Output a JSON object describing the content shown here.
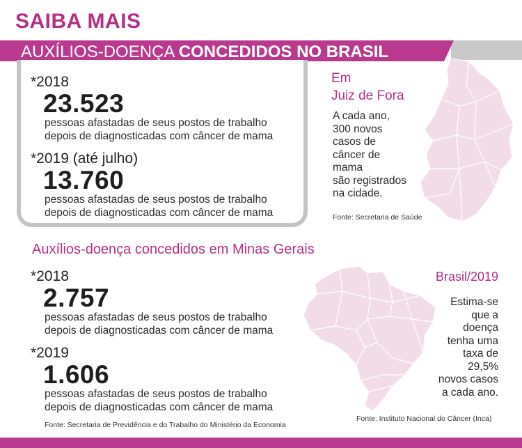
{
  "header": {
    "kicker": "SAIBA MAIS",
    "banner_light": "AUXÍLIOS-DOENÇA",
    "banner_bold": "CONCEDIDOS NO BRASIL"
  },
  "colors": {
    "accent": "#b8398d",
    "map_fill": "#f1dce8",
    "box_border": "#c4c4c4"
  },
  "chart_data": {
    "type": "table",
    "groups": [
      {
        "title": "",
        "entries": [
          {
            "year": "*2018",
            "value": "23.523",
            "desc1": "pessoas afastadas de seus postos de trabalho",
            "desc2": "depois de diagnosticadas com câncer de mama"
          },
          {
            "year": "*2019 (até julho)",
            "value": "13.760",
            "desc1": "pessoas afastadas de seus postos de trabalho",
            "desc2": "depois de diagnosticadas com câncer de mama"
          }
        ]
      },
      {
        "title": "Auxílios-doença concedidos em Minas Gerais",
        "entries": [
          {
            "year": "*2018",
            "value": "2.757",
            "desc1": "pessoas afastadas de seus postos de trabalho",
            "desc2": "depois de diagnosticadas com câncer de mama"
          },
          {
            "year": "*2019",
            "value": "1.606",
            "desc1": "pessoas afastadas de seus postos de trabalho",
            "desc2": "depois de diagnosticadas com câncer de mama"
          }
        ],
        "source": "Fonte: Secretaria de Previdência e do Trabalho do Ministério da Economia"
      }
    ]
  },
  "juiz_de_fora": {
    "title1": "Em",
    "title2": "Juiz de Fora",
    "lines": [
      "A cada ano,",
      "300 novos",
      "casos de",
      "câncer de",
      "mama",
      "são registrados",
      "na cidade."
    ],
    "source": "Fonte: Secretaria de Saúde"
  },
  "brasil": {
    "title": "Brasil/2019",
    "lines": [
      "Estima-se",
      "que a",
      "doença",
      "tenha uma",
      "taxa de",
      "29,5%",
      "novos casos",
      "a cada ano."
    ],
    "source": "Fonte: Instituto Nacional do Câncer (Inca)"
  }
}
